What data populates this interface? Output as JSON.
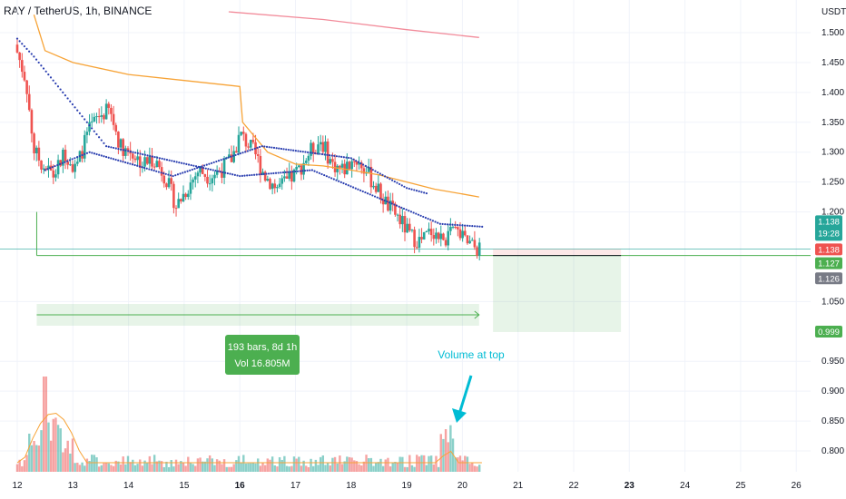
{
  "header": {
    "symbol": "RAY",
    "pair": "TetherUS",
    "interval": "1h",
    "exchange": "BINANCE",
    "title": "RAY / TetherUS, 1h, BINANCE"
  },
  "price_axis": {
    "unit": "USDT",
    "ticks": [
      "1.500",
      "1.450",
      "1.400",
      "1.350",
      "1.300",
      "1.250",
      "1.200",
      "1.050",
      "0.950",
      "0.900",
      "0.850",
      "0.800"
    ],
    "tick_values": [
      1.5,
      1.45,
      1.4,
      1.35,
      1.3,
      1.25,
      1.2,
      1.05,
      0.95,
      0.9,
      0.85,
      0.8
    ],
    "labels": [
      {
        "text": "1.138",
        "value": 1.138,
        "color": "#26a69a",
        "sub": "19:28"
      },
      {
        "text": "1.138",
        "value": 1.138,
        "color": "#ef5350"
      },
      {
        "text": "1.127",
        "value": 1.127,
        "color": "#4caf50"
      },
      {
        "text": "1.126",
        "value": 1.126,
        "color": "#787b86"
      },
      {
        "text": "0.999",
        "value": 0.999,
        "color": "#4caf50"
      }
    ]
  },
  "time_axis": {
    "ticks": [
      "12",
      "13",
      "14",
      "15",
      "16",
      "17",
      "18",
      "19",
      "20",
      "21",
      "22",
      "23",
      "24",
      "25",
      "26"
    ],
    "bold": [
      "16",
      "23"
    ]
  },
  "measure_box": {
    "line1": "193 bars, 8d 1h",
    "line2": "Vol 16.805M"
  },
  "annotation": {
    "text": "Volume at top"
  },
  "colors": {
    "up": "#26a69a",
    "down": "#ef5350",
    "ma": "#f7a336",
    "ma_long": "#f28b9a",
    "psar": "#2b3fb0",
    "target": "#4caf50",
    "annot": "#00bcd4"
  },
  "chart_data": {
    "type": "candlestick",
    "title": "RAY / TetherUS, 1h, BINANCE",
    "x_range_days": [
      12,
      26
    ],
    "y_range": [
      0.77,
      1.52
    ],
    "series_price": [
      [
        12.0,
        1.48
      ],
      [
        12.2,
        1.42
      ],
      [
        12.35,
        1.3
      ],
      [
        12.5,
        1.28
      ],
      [
        12.7,
        1.26
      ],
      [
        12.9,
        1.3
      ],
      [
        13.1,
        1.27
      ],
      [
        13.3,
        1.33
      ],
      [
        13.5,
        1.36
      ],
      [
        13.7,
        1.37
      ],
      [
        13.9,
        1.31
      ],
      [
        14.1,
        1.3
      ],
      [
        14.3,
        1.28
      ],
      [
        14.5,
        1.29
      ],
      [
        14.7,
        1.26
      ],
      [
        14.9,
        1.21
      ],
      [
        15.1,
        1.24
      ],
      [
        15.3,
        1.27
      ],
      [
        15.5,
        1.26
      ],
      [
        15.7,
        1.27
      ],
      [
        15.9,
        1.29
      ],
      [
        16.05,
        1.33
      ],
      [
        16.3,
        1.3
      ],
      [
        16.5,
        1.26
      ],
      [
        16.7,
        1.24
      ],
      [
        16.9,
        1.25
      ],
      [
        17.1,
        1.27
      ],
      [
        17.3,
        1.3
      ],
      [
        17.5,
        1.32
      ],
      [
        17.7,
        1.28
      ],
      [
        17.9,
        1.27
      ],
      [
        18.1,
        1.29
      ],
      [
        18.3,
        1.27
      ],
      [
        18.5,
        1.24
      ],
      [
        18.7,
        1.21
      ],
      [
        18.9,
        1.19
      ],
      [
        19.1,
        1.16
      ],
      [
        19.3,
        1.15
      ],
      [
        19.5,
        1.17
      ],
      [
        19.7,
        1.15
      ],
      [
        19.9,
        1.17
      ],
      [
        20.1,
        1.15
      ],
      [
        20.3,
        1.138
      ]
    ],
    "series_ma": [
      [
        12.3,
        1.53
      ],
      [
        12.5,
        1.47
      ],
      [
        13.0,
        1.45
      ],
      [
        14.0,
        1.43
      ],
      [
        15.0,
        1.42
      ],
      [
        16.0,
        1.41
      ],
      [
        16.05,
        1.35
      ],
      [
        16.5,
        1.3
      ],
      [
        17.0,
        1.28
      ],
      [
        17.5,
        1.277
      ],
      [
        18.0,
        1.27
      ],
      [
        18.5,
        1.262
      ],
      [
        19.0,
        1.25
      ],
      [
        19.5,
        1.238
      ],
      [
        20.0,
        1.23
      ],
      [
        20.3,
        1.225
      ]
    ],
    "series_ma_long": [
      [
        15.8,
        1.535
      ],
      [
        17.5,
        1.522
      ],
      [
        19.0,
        1.505
      ],
      [
        20.3,
        1.492
      ]
    ],
    "psar_up": [
      [
        12.0,
        1.49
      ],
      [
        12.3,
        1.46
      ],
      [
        13.6,
        1.31
      ],
      [
        16.0,
        1.26
      ],
      [
        17.3,
        1.27
      ],
      [
        19.6,
        1.18
      ],
      [
        20.4,
        1.175
      ]
    ],
    "psar_down": [
      [
        12.5,
        1.27
      ],
      [
        13.3,
        1.3
      ],
      [
        14.8,
        1.26
      ],
      [
        16.4,
        1.31
      ],
      [
        18.0,
        1.29
      ],
      [
        19.0,
        1.24
      ],
      [
        19.4,
        1.23
      ]
    ],
    "volume_peak_day": 12.5,
    "support_level": 1.127,
    "target_level": 0.999
  }
}
